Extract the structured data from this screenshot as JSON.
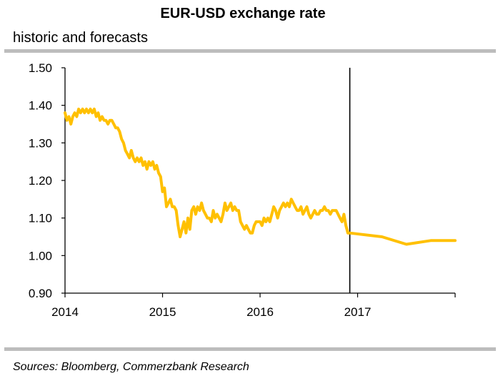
{
  "title": "EUR-USD exchange rate",
  "subtitle": "historic and forecasts",
  "source": "Sources: Bloomberg, Commerzbank Research",
  "chart_data": {
    "type": "line",
    "title": "EUR-USD exchange rate",
    "subtitle": "historic and forecasts",
    "xlabel": "",
    "ylabel": "",
    "xlim": [
      2014.0,
      2018.0
    ],
    "ylim": [
      0.9,
      1.5
    ],
    "x_ticks": [
      "2014",
      "2015",
      "2016",
      "2017"
    ],
    "y_ticks": [
      "1.50",
      "1.40",
      "1.30",
      "1.20",
      "1.10",
      "1.00",
      "0.90"
    ],
    "grid": false,
    "legend": "none",
    "line_color": "#FFC000",
    "marker_line": {
      "x": 2016.92
    },
    "series": [
      {
        "values_x": [
          2014.0,
          2014.02,
          2014.04,
          2014.06,
          2014.08,
          2014.1,
          2014.12,
          2014.14,
          2014.16,
          2014.18,
          2014.2,
          2014.22,
          2014.24,
          2014.26,
          2014.28,
          2014.3,
          2014.32,
          2014.34,
          2014.36,
          2014.38,
          2014.4,
          2014.42,
          2014.44,
          2014.46,
          2014.48,
          2014.5,
          2014.52,
          2014.54,
          2014.56,
          2014.58,
          2014.6,
          2014.62,
          2014.64,
          2014.66,
          2014.68,
          2014.7,
          2014.72,
          2014.74,
          2014.76,
          2014.78,
          2014.8,
          2014.82,
          2014.84,
          2014.86,
          2014.88,
          2014.9,
          2014.92,
          2014.94,
          2014.96,
          2014.98,
          2015.0,
          2015.02,
          2015.04,
          2015.06,
          2015.08,
          2015.1,
          2015.12,
          2015.14,
          2015.16,
          2015.18,
          2015.2,
          2015.22,
          2015.24,
          2015.26,
          2015.28,
          2015.3,
          2015.32,
          2015.34,
          2015.36,
          2015.38,
          2015.4,
          2015.42,
          2015.44,
          2015.46,
          2015.48,
          2015.5,
          2015.52,
          2015.54,
          2015.56,
          2015.58,
          2015.6,
          2015.62,
          2015.64,
          2015.66,
          2015.68,
          2015.7,
          2015.72,
          2015.74,
          2015.76,
          2015.78,
          2015.8,
          2015.82,
          2015.84,
          2015.86,
          2015.88,
          2015.9,
          2015.92,
          2015.94,
          2015.96,
          2015.98,
          2016.0,
          2016.02,
          2016.04,
          2016.06,
          2016.08,
          2016.1,
          2016.12,
          2016.14,
          2016.16,
          2016.18,
          2016.2,
          2016.22,
          2016.24,
          2016.26,
          2016.28,
          2016.3,
          2016.32,
          2016.34,
          2016.36,
          2016.38,
          2016.4,
          2016.42,
          2016.44,
          2016.46,
          2016.48,
          2016.5,
          2016.52,
          2016.54,
          2016.56,
          2016.58,
          2016.6,
          2016.62,
          2016.64,
          2016.66,
          2016.68,
          2016.7,
          2016.72,
          2016.74,
          2016.76,
          2016.78,
          2016.8,
          2016.82,
          2016.84,
          2016.86,
          2016.88,
          2016.9,
          2016.92,
          2017.25,
          2017.5,
          2017.75,
          2018.0
        ],
        "values_y": [
          1.38,
          1.36,
          1.37,
          1.35,
          1.37,
          1.38,
          1.37,
          1.39,
          1.38,
          1.39,
          1.38,
          1.39,
          1.38,
          1.39,
          1.38,
          1.39,
          1.37,
          1.38,
          1.36,
          1.37,
          1.36,
          1.36,
          1.35,
          1.36,
          1.36,
          1.35,
          1.34,
          1.34,
          1.33,
          1.31,
          1.3,
          1.28,
          1.27,
          1.26,
          1.28,
          1.26,
          1.25,
          1.26,
          1.25,
          1.26,
          1.24,
          1.25,
          1.23,
          1.25,
          1.24,
          1.25,
          1.23,
          1.24,
          1.22,
          1.21,
          1.17,
          1.18,
          1.13,
          1.14,
          1.15,
          1.13,
          1.13,
          1.12,
          1.08,
          1.05,
          1.07,
          1.09,
          1.06,
          1.1,
          1.07,
          1.12,
          1.13,
          1.11,
          1.13,
          1.12,
          1.14,
          1.12,
          1.11,
          1.1,
          1.1,
          1.09,
          1.12,
          1.1,
          1.11,
          1.1,
          1.09,
          1.11,
          1.14,
          1.12,
          1.13,
          1.14,
          1.12,
          1.13,
          1.12,
          1.12,
          1.09,
          1.08,
          1.07,
          1.08,
          1.07,
          1.06,
          1.06,
          1.08,
          1.09,
          1.09,
          1.09,
          1.08,
          1.1,
          1.09,
          1.1,
          1.09,
          1.11,
          1.13,
          1.12,
          1.1,
          1.12,
          1.13,
          1.14,
          1.13,
          1.14,
          1.13,
          1.15,
          1.14,
          1.13,
          1.12,
          1.12,
          1.13,
          1.11,
          1.12,
          1.13,
          1.11,
          1.1,
          1.11,
          1.12,
          1.11,
          1.11,
          1.12,
          1.12,
          1.13,
          1.12,
          1.12,
          1.11,
          1.12,
          1.12,
          1.12,
          1.11,
          1.1,
          1.09,
          1.11,
          1.08,
          1.06,
          1.06,
          1.05,
          1.03,
          1.04,
          1.04
        ]
      }
    ]
  }
}
